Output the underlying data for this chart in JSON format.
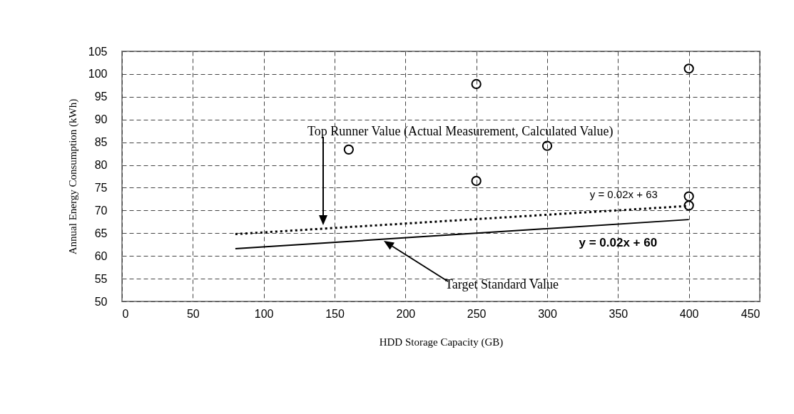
{
  "chart_data": {
    "type": "scatter",
    "xlabel": "HDD Storage Capacity (GB)",
    "ylabel": "Annual Energy Consumption (kWh)",
    "xlim": [
      0,
      450
    ],
    "xticks": [
      0,
      50,
      100,
      150,
      200,
      250,
      300,
      350,
      400,
      450
    ],
    "ylim": [
      50,
      105
    ],
    "yticks": [
      50,
      55,
      60,
      65,
      70,
      75,
      80,
      85,
      90,
      95,
      100,
      105
    ],
    "grid": true,
    "series": [
      {
        "type": "scatter",
        "color": "#000000",
        "marker": "circle",
        "x": [
          160,
          250,
          250,
          300,
          400,
          400,
          400
        ],
        "values": [
          83.4,
          97.8,
          76.5,
          84.2,
          101.2,
          73.1,
          71.1
        ]
      },
      {
        "type": "line",
        "color": "#000000",
        "line_style": "dotted",
        "x": [
          80,
          400
        ],
        "values": [
          64.8,
          71
        ]
      },
      {
        "type": "line",
        "color": "#000000",
        "line_style": "solid",
        "x": [
          80,
          400
        ],
        "values": [
          61.6,
          68
        ]
      }
    ],
    "annotations": [
      "Top Runner Value (Actual Measurement, Calculated Value)",
      "Target Standard Value",
      {
        "text": "y = 0.02x + 63",
        "x": 354,
        "y": 70.1
      },
      {
        "text": "y = 0.02x + 60",
        "x": 350,
        "y": 67
      }
    ]
  }
}
